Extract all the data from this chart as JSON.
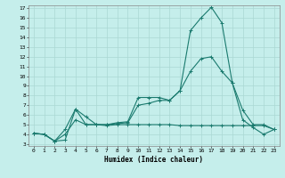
{
  "xlabel": "Humidex (Indice chaleur)",
  "bg_color": "#c5eeeb",
  "grid_color": "#aad8d3",
  "line_color": "#1a7a6e",
  "xlim": [
    -0.5,
    23.5
  ],
  "ylim": [
    2.8,
    17.3
  ],
  "xticks": [
    0,
    1,
    2,
    3,
    4,
    5,
    6,
    7,
    8,
    9,
    10,
    11,
    12,
    13,
    14,
    15,
    16,
    17,
    18,
    19,
    20,
    21,
    22,
    23
  ],
  "yticks": [
    3,
    4,
    5,
    6,
    7,
    8,
    9,
    10,
    11,
    12,
    13,
    14,
    15,
    16,
    17
  ],
  "series1_x": [
    0,
    1,
    2,
    3,
    4,
    5,
    6,
    7,
    8,
    9,
    10,
    11,
    12,
    13,
    14,
    15,
    16,
    17,
    18,
    19,
    20,
    21,
    22,
    23
  ],
  "series1_y": [
    4.1,
    4.0,
    3.3,
    3.4,
    6.6,
    5.0,
    5.0,
    4.9,
    5.0,
    5.0,
    5.0,
    5.0,
    5.0,
    5.0,
    4.9,
    4.9,
    4.9,
    4.9,
    4.9,
    4.9,
    4.9,
    4.9,
    4.9,
    4.5
  ],
  "series2_x": [
    0,
    1,
    2,
    3,
    4,
    5,
    6,
    7,
    8,
    9,
    10,
    11,
    12,
    13,
    14,
    15,
    16,
    17,
    18,
    19,
    20,
    21,
    22,
    23
  ],
  "series2_y": [
    4.1,
    4.0,
    3.3,
    4.5,
    6.6,
    5.8,
    5.0,
    5.0,
    5.2,
    5.3,
    7.8,
    7.8,
    7.8,
    7.5,
    8.5,
    14.7,
    16.0,
    17.1,
    15.5,
    9.3,
    6.5,
    5.0,
    5.0,
    4.5
  ],
  "series3_x": [
    0,
    1,
    2,
    3,
    4,
    5,
    6,
    7,
    8,
    9,
    10,
    11,
    12,
    13,
    14,
    15,
    16,
    17,
    18,
    19,
    20,
    21,
    22,
    23
  ],
  "series3_y": [
    4.1,
    4.0,
    3.3,
    4.0,
    5.5,
    5.0,
    5.0,
    5.0,
    5.1,
    5.2,
    7.0,
    7.2,
    7.5,
    7.5,
    8.5,
    10.5,
    11.8,
    12.0,
    10.5,
    9.3,
    5.5,
    4.7,
    4.0,
    4.5
  ]
}
